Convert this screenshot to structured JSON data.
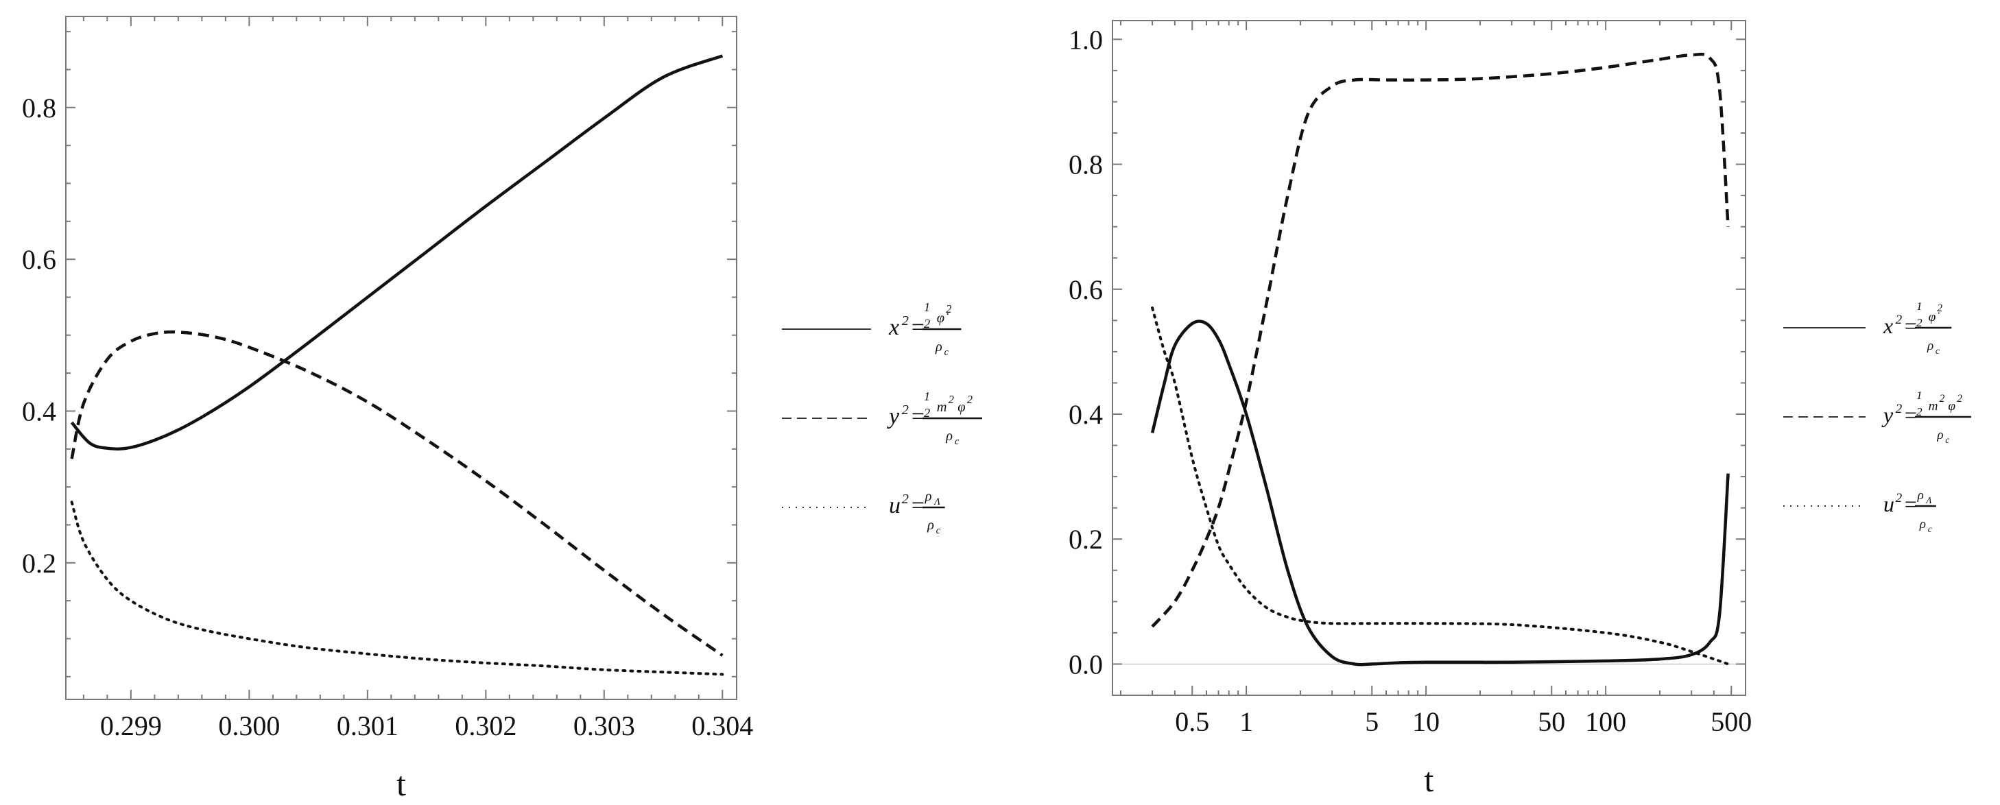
{
  "chart_data": [
    {
      "type": "line",
      "xlabel": "t",
      "ylabel": "",
      "xlim": [
        0.29845,
        0.30412
      ],
      "ylim": [
        0.02,
        0.92
      ],
      "xscale": "linear",
      "xticks": [
        "0.299",
        "0.300",
        "0.301",
        "0.302",
        "0.303",
        "0.304"
      ],
      "xtick_values": [
        0.299,
        0.3,
        0.301,
        0.302,
        0.303,
        0.304
      ],
      "yticks": [
        "0.2",
        "0.4",
        "0.6",
        "0.8"
      ],
      "ytick_values": [
        0.2,
        0.4,
        0.6,
        0.8
      ],
      "legend_position": "right",
      "series": [
        {
          "name": "x² = (½ φ̇²)/ρc",
          "style": "solid",
          "x": [
            0.2985,
            0.29865,
            0.2988,
            0.299,
            0.2993,
            0.2996,
            0.3,
            0.3005,
            0.301,
            0.3015,
            0.302,
            0.3025,
            0.303,
            0.3035,
            0.304
          ],
          "y": [
            0.385,
            0.358,
            0.351,
            0.352,
            0.368,
            0.392,
            0.432,
            0.49,
            0.55,
            0.61,
            0.67,
            0.728,
            0.786,
            0.84,
            0.868
          ]
        },
        {
          "name": "y² = (½ m² φ²)/ρc",
          "style": "dashed",
          "x": [
            0.2985,
            0.2986,
            0.2988,
            0.299,
            0.2992,
            0.2994,
            0.2997,
            0.3,
            0.3005,
            0.301,
            0.3015,
            0.302,
            0.3025,
            0.303,
            0.3035,
            0.304
          ],
          "y": [
            0.337,
            0.41,
            0.468,
            0.492,
            0.502,
            0.504,
            0.498,
            0.484,
            0.452,
            0.412,
            0.362,
            0.308,
            0.25,
            0.19,
            0.132,
            0.078
          ]
        },
        {
          "name": "u² = ρΛ/ρc",
          "style": "dotted",
          "x": [
            0.2985,
            0.2986,
            0.2988,
            0.299,
            0.2993,
            0.2996,
            0.3,
            0.3005,
            0.301,
            0.3015,
            0.302,
            0.3025,
            0.303,
            0.3035,
            0.304
          ],
          "y": [
            0.28,
            0.228,
            0.178,
            0.15,
            0.126,
            0.112,
            0.1,
            0.088,
            0.08,
            0.073,
            0.068,
            0.064,
            0.059,
            0.056,
            0.053
          ]
        }
      ]
    },
    {
      "type": "line",
      "xlabel": "t",
      "ylabel": "",
      "xlim": [
        0.18,
        600
      ],
      "ylim": [
        -0.05,
        1.03
      ],
      "xscale": "log",
      "xticks": [
        "0.5",
        "1",
        "5",
        "10",
        "50",
        "100",
        "500"
      ],
      "xtick_values": [
        0.5,
        1,
        5,
        10,
        50,
        100,
        500
      ],
      "yticks": [
        "0.0",
        "0.2",
        "0.4",
        "0.6",
        "0.8",
        "1.0"
      ],
      "ytick_values": [
        0.0,
        0.2,
        0.4,
        0.6,
        0.8,
        1.0
      ],
      "legend_position": "right",
      "series": [
        {
          "name": "x² = (½ φ̇²)/ρc",
          "style": "solid",
          "x": [
            0.3,
            0.35,
            0.4,
            0.5,
            0.6,
            0.7,
            0.8,
            1.0,
            1.3,
            1.7,
            2.2,
            3.0,
            4.0,
            5.0,
            7.0,
            10,
            30,
            100,
            200,
            300,
            380,
            430,
            480
          ],
          "y": [
            0.37,
            0.45,
            0.51,
            0.545,
            0.545,
            0.52,
            0.48,
            0.4,
            0.28,
            0.15,
            0.06,
            0.012,
            0.0,
            0.0,
            0.002,
            0.003,
            0.003,
            0.005,
            0.008,
            0.015,
            0.035,
            0.08,
            0.305
          ]
        },
        {
          "name": "y² = (½ m² φ²)/ρc",
          "style": "dashed",
          "x": [
            0.3,
            0.4,
            0.5,
            0.6,
            0.7,
            0.8,
            1.0,
            1.3,
            1.7,
            2.2,
            3.0,
            4.0,
            6.0,
            10,
            20,
            50,
            100,
            200,
            300,
            380,
            430,
            480
          ],
          "y": [
            0.06,
            0.1,
            0.15,
            0.2,
            0.25,
            0.31,
            0.42,
            0.58,
            0.75,
            0.88,
            0.925,
            0.935,
            0.935,
            0.935,
            0.937,
            0.945,
            0.955,
            0.968,
            0.975,
            0.97,
            0.92,
            0.7
          ]
        },
        {
          "name": "u² = ρΛ/ρc",
          "style": "dotted",
          "x": [
            0.3,
            0.35,
            0.4,
            0.5,
            0.6,
            0.7,
            0.8,
            1.0,
            1.3,
            1.7,
            2.2,
            3.0,
            5.0,
            10,
            30,
            100,
            200,
            300,
            400,
            480
          ],
          "y": [
            0.57,
            0.5,
            0.45,
            0.33,
            0.25,
            0.19,
            0.16,
            0.12,
            0.09,
            0.075,
            0.068,
            0.065,
            0.065,
            0.065,
            0.063,
            0.05,
            0.035,
            0.02,
            0.008,
            0.0
          ]
        }
      ]
    }
  ]
}
